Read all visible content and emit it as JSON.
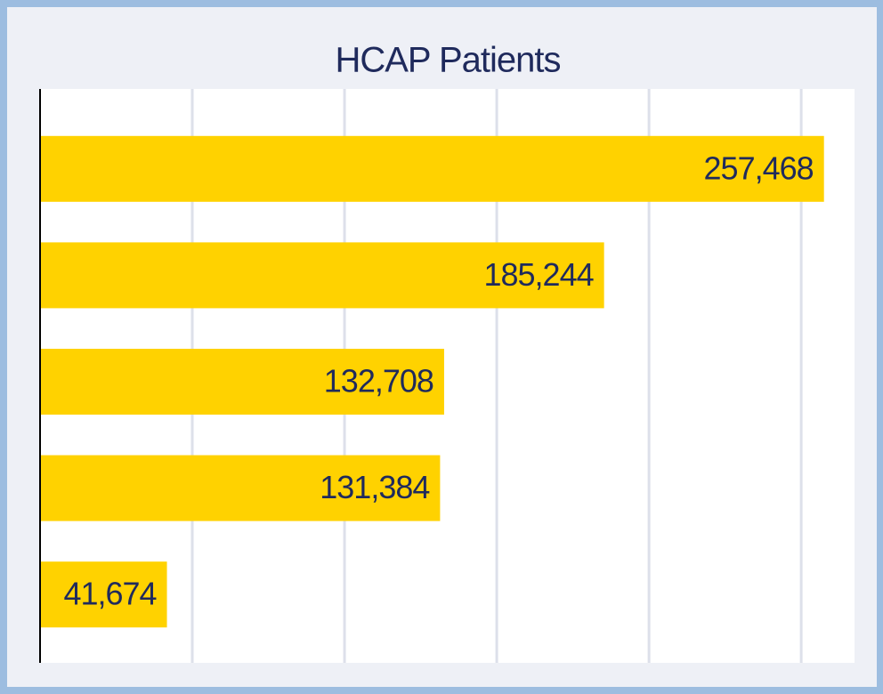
{
  "chart_data": {
    "type": "bar",
    "orientation": "horizontal",
    "title": "HCAP Patients",
    "categories": [
      null,
      null,
      null,
      null,
      null
    ],
    "values": [
      257468,
      185244,
      132708,
      131384,
      41674
    ],
    "value_labels": [
      "257,468",
      "185,244",
      "132,708",
      "131,384",
      "41,674"
    ],
    "color": "#ffd200",
    "xlim": [
      0,
      267500
    ],
    "xticks": [
      50000,
      100000,
      150000,
      200000,
      250000
    ],
    "grid": true
  }
}
